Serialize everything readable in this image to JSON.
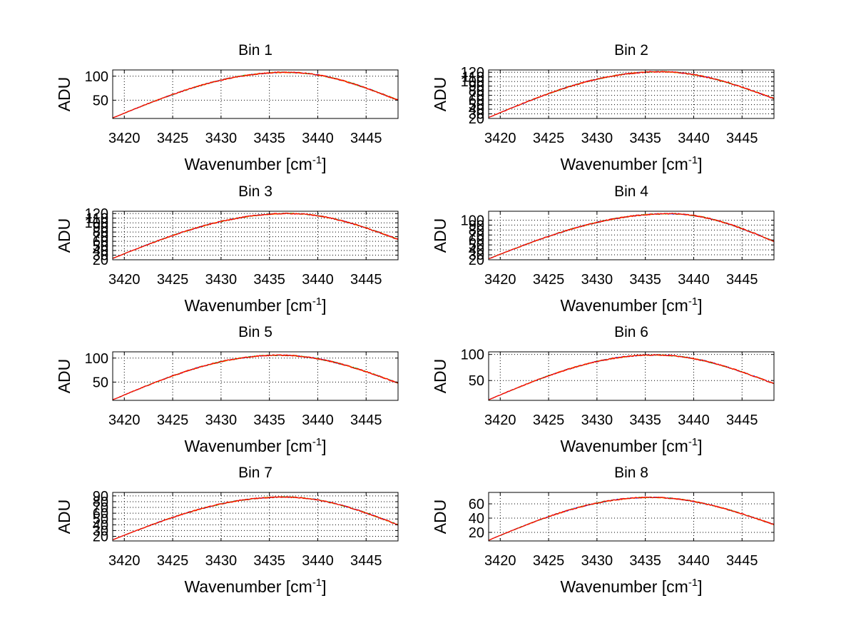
{
  "chart_data": [
    {
      "type": "line",
      "title": "Bin 1",
      "xlabel": "Wavenumber [cm",
      "xlabel_sup": "-1",
      "xlabel_end": "]",
      "ylabel": "ADU",
      "xlim": [
        3418.8,
        3448.3
      ],
      "ylim": [
        12,
        113
      ],
      "xticks": [
        3420,
        3425,
        3430,
        3435,
        3440,
        3445
      ],
      "yticks": [
        50,
        100
      ],
      "grid": true,
      "curve": {
        "start": 13,
        "peak": 108,
        "peak_x": 3436.8,
        "end": 50
      }
    },
    {
      "type": "line",
      "title": "Bin 2",
      "xlabel": "Wavenumber [cm",
      "xlabel_sup": "-1",
      "xlabel_end": "]",
      "ylabel": "ADU",
      "xlim": [
        3418.8,
        3448.3
      ],
      "ylim": [
        20,
        125
      ],
      "xticks": [
        3420,
        3425,
        3430,
        3435,
        3440,
        3445
      ],
      "yticks": [
        20,
        30,
        40,
        50,
        60,
        70,
        80,
        90,
        100,
        110,
        120
      ],
      "grid": true,
      "curve": {
        "start": 22,
        "peak": 121,
        "peak_x": 3436.5,
        "end": 63
      }
    },
    {
      "type": "line",
      "title": "Bin 3",
      "xlabel": "Wavenumber [cm",
      "xlabel_sup": "-1",
      "xlabel_end": "]",
      "ylabel": "ADU",
      "xlim": [
        3418.8,
        3448.3
      ],
      "ylim": [
        20,
        125
      ],
      "xticks": [
        3420,
        3425,
        3430,
        3435,
        3440,
        3445
      ],
      "yticks": [
        20,
        30,
        40,
        50,
        60,
        70,
        80,
        90,
        100,
        110,
        120
      ],
      "grid": true,
      "curve": {
        "start": 23,
        "peak": 120,
        "peak_x": 3437.0,
        "end": 64
      }
    },
    {
      "type": "line",
      "title": "Bin 4",
      "xlabel": "Wavenumber [cm",
      "xlabel_sup": "-1",
      "xlabel_end": "]",
      "ylabel": "ADU",
      "xlim": [
        3418.8,
        3448.3
      ],
      "ylim": [
        20,
        118
      ],
      "xticks": [
        3420,
        3425,
        3430,
        3435,
        3440,
        3445
      ],
      "yticks": [
        20,
        30,
        40,
        50,
        60,
        70,
        80,
        90,
        100
      ],
      "grid": true,
      "curve": {
        "start": 22,
        "peak": 113,
        "peak_x": 3437.5,
        "end": 57
      }
    },
    {
      "type": "line",
      "title": "Bin 5",
      "xlabel": "Wavenumber [cm",
      "xlabel_sup": "-1",
      "xlabel_end": "]",
      "ylabel": "ADU",
      "xlim": [
        3418.8,
        3448.3
      ],
      "ylim": [
        12,
        113
      ],
      "xticks": [
        3420,
        3425,
        3430,
        3435,
        3440,
        3445
      ],
      "yticks": [
        50,
        100
      ],
      "grid": true,
      "curve": {
        "start": 13,
        "peak": 106,
        "peak_x": 3436.0,
        "end": 48
      }
    },
    {
      "type": "line",
      "title": "Bin 6",
      "xlabel": "Wavenumber [cm",
      "xlabel_sup": "-1",
      "xlabel_end": "]",
      "ylabel": "ADU",
      "xlim": [
        3418.8,
        3448.3
      ],
      "ylim": [
        12,
        105
      ],
      "xticks": [
        3420,
        3425,
        3430,
        3435,
        3440,
        3445
      ],
      "yticks": [
        50,
        100
      ],
      "grid": true,
      "curve": {
        "start": 13,
        "peak": 99,
        "peak_x": 3436.0,
        "end": 44
      }
    },
    {
      "type": "line",
      "title": "Bin 7",
      "xlabel": "Wavenumber [cm",
      "xlabel_sup": "-1",
      "xlabel_end": "]",
      "ylabel": "ADU",
      "xlim": [
        3418.8,
        3448.3
      ],
      "ylim": [
        12,
        96
      ],
      "xticks": [
        3420,
        3425,
        3430,
        3435,
        3440,
        3445
      ],
      "yticks": [
        20,
        30,
        40,
        50,
        60,
        70,
        80,
        90
      ],
      "grid": true,
      "curve": {
        "start": 14,
        "peak": 88,
        "peak_x": 3436.5,
        "end": 40
      }
    },
    {
      "type": "line",
      "title": "Bin 8",
      "xlabel": "Wavenumber [cm",
      "xlabel_sup": "-1",
      "xlabel_end": "]",
      "ylabel": "ADU",
      "xlim": [
        3418.8,
        3448.3
      ],
      "ylim": [
        8,
        76
      ],
      "xticks": [
        3420,
        3425,
        3430,
        3435,
        3440,
        3445
      ],
      "yticks": [
        20,
        40,
        60
      ],
      "grid": true,
      "curve": {
        "start": 9,
        "peak": 69,
        "peak_x": 3435.5,
        "end": 31
      }
    }
  ],
  "colors": {
    "series": [
      "#0000ff",
      "#00aa00",
      "#ff8800",
      "#ff0000"
    ],
    "axis": "#000000",
    "grid": "#000000",
    "background": "#ffffff"
  }
}
